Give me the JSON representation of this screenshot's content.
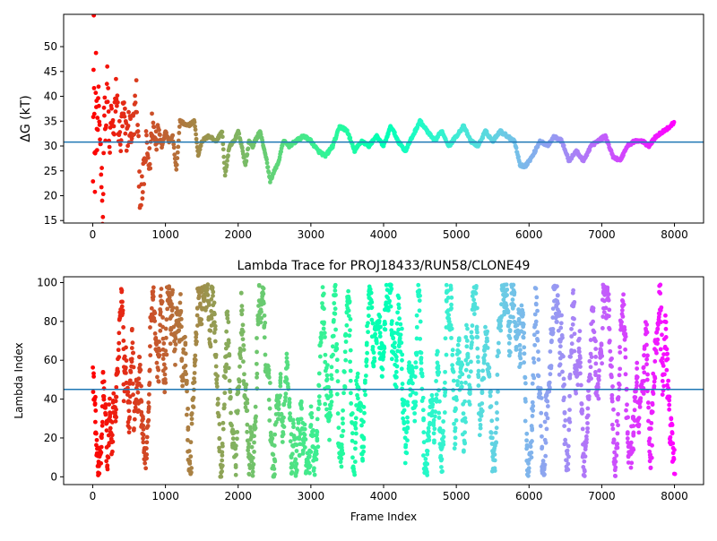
{
  "chart_data": [
    {
      "type": "scatter",
      "title": "",
      "xlabel": "",
      "ylabel": "ΔG (kT)",
      "xlim": [
        -400,
        8400
      ],
      "ylim": [
        14.5,
        56.5
      ],
      "xticks": [
        0,
        1000,
        2000,
        3000,
        4000,
        5000,
        6000,
        7000,
        8000
      ],
      "yticks": [
        15,
        20,
        25,
        30,
        35,
        40,
        45,
        50
      ],
      "hline": 30.8,
      "hline_color": "#1f77b4",
      "colormap": "rainbow",
      "grid": false,
      "trace_segments": [
        [
          0,
          18
        ],
        [
          15,
          53
        ],
        [
          30,
          20
        ],
        [
          45,
          45
        ],
        [
          60,
          30
        ],
        [
          80,
          38
        ],
        [
          100,
          33
        ],
        [
          120,
          25
        ],
        [
          140,
          16
        ],
        [
          160,
          40
        ],
        [
          180,
          30
        ],
        [
          200,
          45
        ],
        [
          230,
          28
        ],
        [
          260,
          38
        ],
        [
          290,
          31
        ],
        [
          320,
          42
        ],
        [
          350,
          35
        ],
        [
          380,
          30
        ],
        [
          420,
          37
        ],
        [
          460,
          32
        ],
        [
          500,
          34
        ],
        [
          550,
          33
        ],
        [
          600,
          40
        ],
        [
          630,
          28
        ],
        [
          660,
          17
        ],
        [
          700,
          24
        ],
        [
          740,
          30
        ],
        [
          780,
          26
        ],
        [
          820,
          35
        ],
        [
          860,
          31
        ],
        [
          900,
          34
        ],
        [
          950,
          30
        ],
        [
          1000,
          33
        ],
        [
          1050,
          31
        ],
        [
          1100,
          32
        ],
        [
          1150,
          25
        ],
        [
          1200,
          35
        ],
        [
          1300,
          34
        ],
        [
          1400,
          35
        ],
        [
          1450,
          28
        ],
        [
          1500,
          31
        ],
        [
          1600,
          32
        ],
        [
          1700,
          31
        ],
        [
          1780,
          33
        ],
        [
          1820,
          24
        ],
        [
          1880,
          30
        ],
        [
          1950,
          31
        ],
        [
          2000,
          33
        ],
        [
          2050,
          30
        ],
        [
          2100,
          26
        ],
        [
          2150,
          31
        ],
        [
          2200,
          30
        ],
        [
          2300,
          33
        ],
        [
          2380,
          28
        ],
        [
          2440,
          23
        ],
        [
          2500,
          25
        ],
        [
          2560,
          27
        ],
        [
          2620,
          31
        ],
        [
          2700,
          30
        ],
        [
          2800,
          31
        ],
        [
          2900,
          32
        ],
        [
          3000,
          31
        ],
        [
          3100,
          29
        ],
        [
          3200,
          28
        ],
        [
          3300,
          30
        ],
        [
          3400,
          34
        ],
        [
          3500,
          33
        ],
        [
          3600,
          29
        ],
        [
          3700,
          31
        ],
        [
          3800,
          30
        ],
        [
          3900,
          32
        ],
        [
          4000,
          30
        ],
        [
          4100,
          34
        ],
        [
          4200,
          31
        ],
        [
          4300,
          29
        ],
        [
          4400,
          32
        ],
        [
          4500,
          35
        ],
        [
          4600,
          33
        ],
        [
          4700,
          31
        ],
        [
          4800,
          33
        ],
        [
          4900,
          30
        ],
        [
          5000,
          32
        ],
        [
          5100,
          34
        ],
        [
          5200,
          31
        ],
        [
          5300,
          30
        ],
        [
          5400,
          33
        ],
        [
          5500,
          31
        ],
        [
          5600,
          33
        ],
        [
          5700,
          32
        ],
        [
          5800,
          31
        ],
        [
          5880,
          26
        ],
        [
          5950,
          26
        ],
        [
          6050,
          28
        ],
        [
          6150,
          31
        ],
        [
          6250,
          30
        ],
        [
          6350,
          32
        ],
        [
          6450,
          31
        ],
        [
          6550,
          27
        ],
        [
          6650,
          29
        ],
        [
          6750,
          27
        ],
        [
          6850,
          30
        ],
        [
          6950,
          31
        ],
        [
          7050,
          32
        ],
        [
          7150,
          28
        ],
        [
          7250,
          27
        ],
        [
          7350,
          30
        ],
        [
          7450,
          31
        ],
        [
          7550,
          31
        ],
        [
          7650,
          30
        ],
        [
          7750,
          32
        ],
        [
          7850,
          33
        ],
        [
          7950,
          34
        ],
        [
          8000,
          35
        ]
      ]
    },
    {
      "type": "scatter",
      "title": "Lambda Trace for PROJ18433/RUN58/CLONE49",
      "xlabel": "Frame Index",
      "ylabel": "Lambda Index",
      "xlim": [
        -400,
        8400
      ],
      "ylim": [
        -4,
        103
      ],
      "xticks": [
        0,
        1000,
        2000,
        3000,
        4000,
        5000,
        6000,
        7000,
        8000
      ],
      "yticks": [
        0,
        20,
        40,
        60,
        80,
        100
      ],
      "hline": 45,
      "hline_color": "#1f77b4",
      "colormap": "rainbow",
      "grid": false,
      "frames": 8000,
      "lambda_min": 0,
      "lambda_max": 99
    }
  ]
}
